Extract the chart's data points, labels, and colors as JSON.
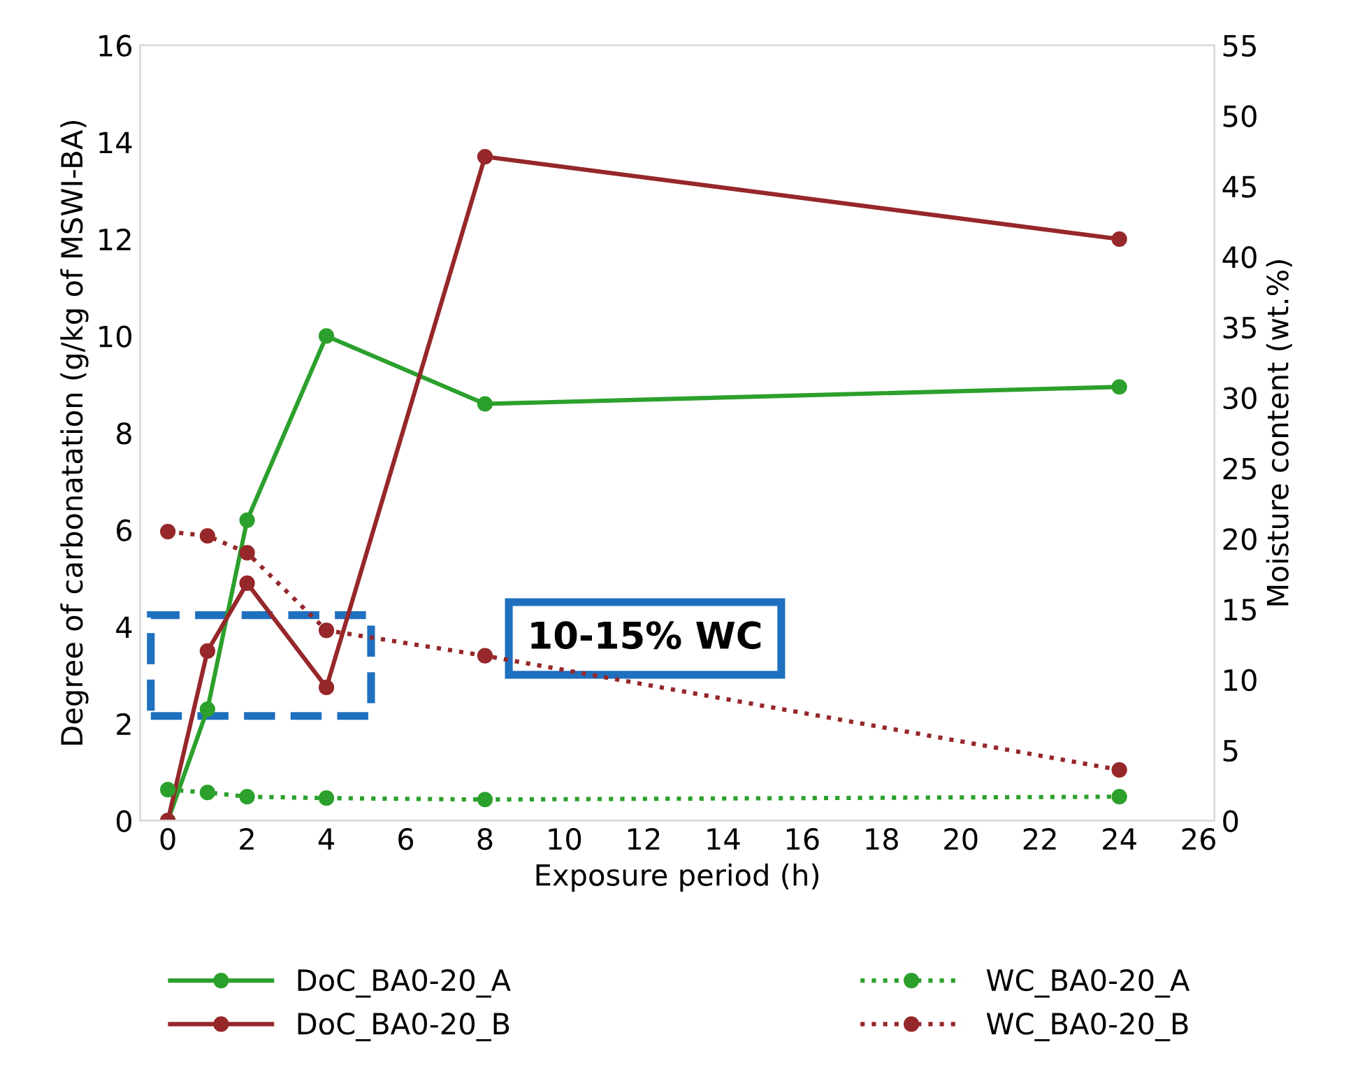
{
  "chart_data": {
    "type": "line",
    "xlabel": "Exposure period (h)",
    "ylabel": "Degree of carbonatation (g/kg of MSWI-BA)",
    "y2label": "Moisture content (wt.%)",
    "x": [
      0,
      1,
      2,
      4,
      8,
      24
    ],
    "series": [
      {
        "name": "DoC_BA0-20_A",
        "color": "#2ca02c",
        "line_style": "solid",
        "values": [
          0,
          2.3,
          6.2,
          10.0,
          8.6,
          8.95
        ]
      },
      {
        "name": "WC_BA0-20_A",
        "color": "#2ca02c",
        "line_style": "dotted",
        "axis": "y2",
        "values": [
          2.2,
          2.0,
          1.7,
          1.6,
          1.5,
          1.7
        ]
      },
      {
        "name": "DoC_BA0-20_B",
        "color": "#96272a",
        "line_style": "solid",
        "values": [
          0,
          3.5,
          4.9,
          2.75,
          13.7,
          12.0
        ]
      },
      {
        "name": "WC_BA0-20_B",
        "color": "#96272a",
        "line_style": "dotted",
        "axis": "y2",
        "values": [
          20.5,
          20.2,
          19.0,
          13.5,
          11.7,
          3.6
        ]
      }
    ],
    "xlim": [
      -0.7,
      26.4
    ],
    "xticks": [
      0,
      2,
      4,
      6,
      8,
      10,
      12,
      14,
      16,
      18,
      20,
      22,
      24,
      26
    ],
    "ylim": [
      0,
      16
    ],
    "yticks": [
      0,
      2,
      4,
      6,
      8,
      10,
      12,
      14,
      16
    ],
    "y2lim": [
      0,
      55
    ],
    "y2ticks": [
      0,
      5,
      10,
      15,
      20,
      25,
      30,
      35,
      40,
      45,
      50,
      55
    ],
    "annotations": [
      "10-15% WC"
    ],
    "marker": "circle",
    "grid": false,
    "legend": "bottom"
  }
}
